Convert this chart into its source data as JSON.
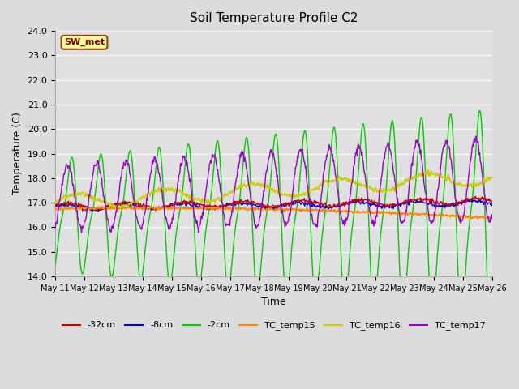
{
  "title": "Soil Temperature Profile C2",
  "xlabel": "Time",
  "ylabel": "Temperature (C)",
  "ylim": [
    14.0,
    24.0
  ],
  "yticks": [
    14.0,
    15.0,
    16.0,
    17.0,
    18.0,
    19.0,
    20.0,
    21.0,
    22.0,
    23.0,
    24.0
  ],
  "bg_color": "#dcdcdc",
  "plot_bg_color": "#e0e0e0",
  "grid_color": "#f5f5f5",
  "annotation_label": "SW_met",
  "annotation_bg": "#ffff99",
  "annotation_border": "#8b4513",
  "annotation_text_color": "#8b0000",
  "colors": {
    "-32cm": "#cc0000",
    "-8cm": "#0000cc",
    "-2cm": "#00cc00",
    "TC_temp15": "#ff8800",
    "TC_temp16": "#cccc00",
    "TC_temp17": "#9900cc"
  },
  "xtick_labels": [
    "May 11",
    "May 12",
    "May 13",
    "May 14",
    "May 15",
    "May 16",
    "May 17",
    "May 18",
    "May 19",
    "May 20",
    "May 21",
    "May 22",
    "May 23",
    "May 24",
    "May 25",
    "May 26"
  ]
}
